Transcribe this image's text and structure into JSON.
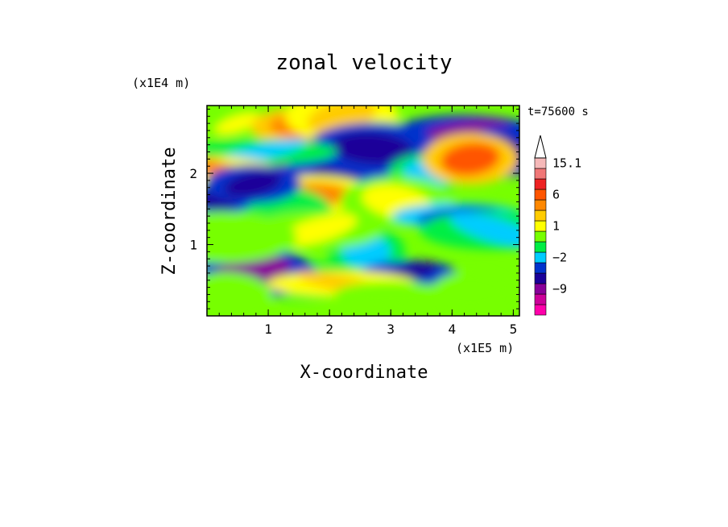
{
  "chart_data": {
    "type": "heatmap",
    "title": "zonal velocity",
    "xlabel": "X-coordinate",
    "ylabel": "Z-coordinate",
    "x_scale_label": "(x1E5 m)",
    "y_scale_label": "(x1E4 m)",
    "time_label": "t=75600 s",
    "xlim": [
      0,
      5.1
    ],
    "ylim": [
      0,
      2.95
    ],
    "x_ticks": [
      1,
      2,
      3,
      4,
      5
    ],
    "y_ticks": [
      1,
      2
    ],
    "colorbar": {
      "levels": [
        -15,
        -12,
        -9,
        -6,
        -4,
        -2,
        -1,
        0,
        1,
        2,
        4,
        6,
        9,
        12,
        15.1
      ],
      "colors": [
        "#ff00aa",
        "#cc0099",
        "#880099",
        "#1a0099",
        "#0033cc",
        "#00ccff",
        "#00ee44",
        "#77ff00",
        "#ffff00",
        "#ffcc00",
        "#ff8800",
        "#ff5500",
        "#ee2222",
        "#f07777",
        "#f5b8b8"
      ],
      "labels": [
        {
          "value": 15.1,
          "text": "15.1"
        },
        {
          "value": 6,
          "text": "6"
        },
        {
          "value": 1,
          "text": "1"
        },
        {
          "value": -2,
          "text": "−2"
        },
        {
          "value": -9,
          "text": "−9"
        }
      ]
    },
    "features": [
      {
        "x": 0.5,
        "z": 2.7,
        "v": 1.5
      },
      {
        "x": 1.5,
        "z": 2.65,
        "v": 5
      },
      {
        "x": 2.2,
        "z": 2.8,
        "v": 3
      },
      {
        "x": 3.0,
        "z": 2.55,
        "v": 2
      },
      {
        "x": 4.2,
        "z": 2.55,
        "v": -8
      },
      {
        "x": 4.85,
        "z": 2.3,
        "v": -5
      },
      {
        "x": 1.3,
        "z": 2.1,
        "v": -9
      },
      {
        "x": 2.2,
        "z": 2.05,
        "v": -6
      },
      {
        "x": 2.7,
        "z": 2.35,
        "v": -6
      },
      {
        "x": 0.9,
        "z": 2.3,
        "v": -2
      },
      {
        "x": 3.6,
        "z": 2.0,
        "v": -1.5
      },
      {
        "x": 4.3,
        "z": 2.2,
        "v": 6
      },
      {
        "x": 0.2,
        "z": 2.05,
        "v": 4
      },
      {
        "x": 1.7,
        "z": 1.7,
        "v": 4
      },
      {
        "x": 0.8,
        "z": 1.5,
        "v": -1
      },
      {
        "x": 0.1,
        "z": 1.6,
        "v": -6
      },
      {
        "x": 0.75,
        "z": 1.85,
        "v": -6
      },
      {
        "x": 3.1,
        "z": 1.6,
        "v": 1.5
      },
      {
        "x": 4.1,
        "z": 1.4,
        "v": -4
      },
      {
        "x": 4.7,
        "z": 1.2,
        "v": -2
      },
      {
        "x": 2.6,
        "z": 0.9,
        "v": -2
      },
      {
        "x": 3.3,
        "z": 0.6,
        "v": -5
      },
      {
        "x": 1.55,
        "z": 0.5,
        "v": -1.5
      },
      {
        "x": 0.7,
        "z": 0.6,
        "v": -8
      },
      {
        "x": 2.2,
        "z": 0.45,
        "v": 3
      },
      {
        "x": 4.3,
        "z": 0.35,
        "v": 0.7
      },
      {
        "x": 0.3,
        "z": 0.25,
        "v": 0.6
      },
      {
        "x": 3.0,
        "z": 0.3,
        "v": 0.5
      },
      {
        "x": 1.8,
        "z": 1.2,
        "v": 1.5
      },
      {
        "x": 0.25,
        "z": 1.1,
        "v": 0.5
      }
    ]
  }
}
